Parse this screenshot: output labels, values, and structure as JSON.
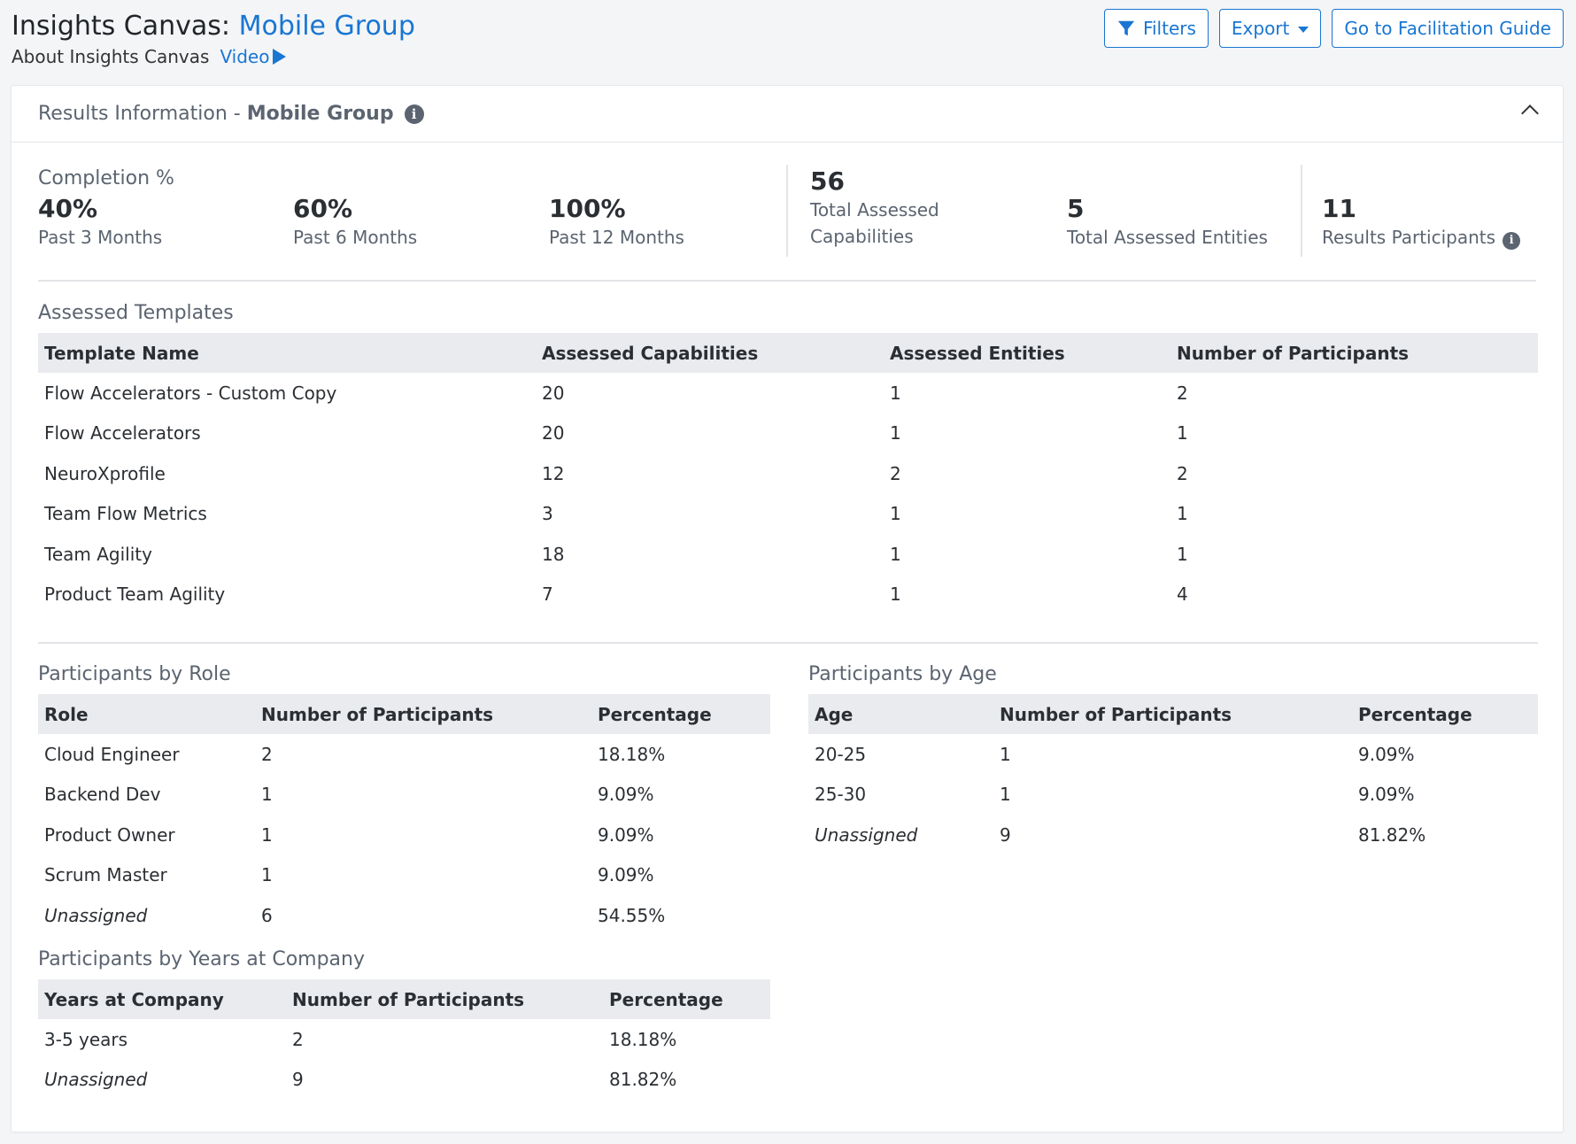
{
  "header": {
    "title_prefix": "Insights Canvas: ",
    "title_group": "Mobile Group",
    "about_label": "About Insights Canvas",
    "video_label": "Video",
    "filters_label": "Filters",
    "export_label": "Export",
    "guide_label": "Go to Facilitation Guide"
  },
  "card": {
    "title_prefix": "Results Information - ",
    "title_group": "Mobile Group"
  },
  "stats": {
    "completion_label": "Completion %",
    "past3": {
      "value": "40%",
      "label": "Past 3 Months"
    },
    "past6": {
      "value": "60%",
      "label": "Past 6 Months"
    },
    "past12": {
      "value": "100%",
      "label": "Past 12 Months"
    },
    "capabilities": {
      "value": "56",
      "label_line1": "Total Assessed",
      "label_line2": "Capabilities"
    },
    "entities": {
      "value": "5",
      "label": "Total Assessed Entities"
    },
    "participants": {
      "value": "11",
      "label": "Results Participants"
    }
  },
  "templates": {
    "title": "Assessed Templates",
    "headers": [
      "Template Name",
      "Assessed Capabilities",
      "Assessed Entities",
      "Number of Participants"
    ],
    "rows": [
      [
        "Flow Accelerators - Custom Copy",
        "20",
        "1",
        "2"
      ],
      [
        "Flow Accelerators",
        "20",
        "1",
        "1"
      ],
      [
        "NeuroXprofile",
        "12",
        "2",
        "2"
      ],
      [
        "Team Flow Metrics",
        "3",
        "1",
        "1"
      ],
      [
        "Team Agility",
        "18",
        "1",
        "1"
      ],
      [
        "Product Team Agility",
        "7",
        "1",
        "4"
      ]
    ]
  },
  "role": {
    "title": "Participants by Role",
    "headers": [
      "Role",
      "Number of Participants",
      "Percentage"
    ],
    "rows": [
      [
        "Cloud Engineer",
        "2",
        "18.18%"
      ],
      [
        "Backend Dev",
        "1",
        "9.09%"
      ],
      [
        "Product Owner",
        "1",
        "9.09%"
      ],
      [
        "Scrum Master",
        "1",
        "9.09%"
      ],
      [
        "Unassigned",
        "6",
        "54.55%"
      ]
    ]
  },
  "age": {
    "title": "Participants by Age",
    "headers": [
      "Age",
      "Number of Participants",
      "Percentage"
    ],
    "rows": [
      [
        "20-25",
        "1",
        "9.09%"
      ],
      [
        "25-30",
        "1",
        "9.09%"
      ],
      [
        "Unassigned",
        "9",
        "81.82%"
      ]
    ]
  },
  "years": {
    "title": "Participants by Years at Company",
    "headers": [
      "Years at Company",
      "Number of Participants",
      "Percentage"
    ],
    "rows": [
      [
        "3-5 years",
        "2",
        "18.18%"
      ],
      [
        "Unassigned",
        "9",
        "81.82%"
      ]
    ]
  },
  "icons": {
    "filter": "filter-icon",
    "play": "play-icon",
    "info": "info-icon",
    "collapse": "chevron-up-icon",
    "dropdown": "caret-down-icon"
  },
  "colors": {
    "accent": "#1976d2",
    "muted_text": "#5b6470",
    "table_header_bg": "#e9ebee"
  }
}
